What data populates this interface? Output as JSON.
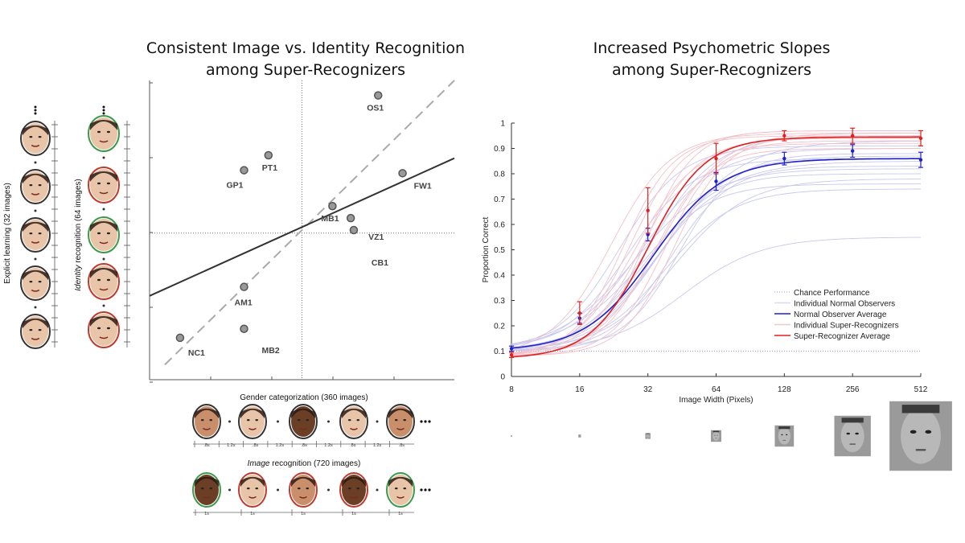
{
  "titles": {
    "left_line1": "Consistent Image vs. Identity Recognition",
    "left_line2": "among Super-Recognizers",
    "right_line1": "Increased Psychometric Slopes",
    "right_line2": "among Super-Recognizers"
  },
  "left_panel": {
    "explicit_label": "Explicit learning (32 images)",
    "identity_label_italic": "Identity",
    "identity_label_rest": " recognition (64 images)",
    "gender_label": "Gender categorization (360 images)",
    "image_label_italic": "Image",
    "image_label_rest": " recognition (720 images)",
    "ellipsis": "...",
    "timing_gender": [
      ".8s",
      "1.2s",
      ".8s",
      "1.2s",
      ".8s",
      "1.2s",
      ".8s",
      "1.2s",
      ".8s"
    ],
    "timing_image": [
      "1s",
      "1s",
      "1s",
      "1s",
      "1s"
    ],
    "face_colors": {
      "skin_light": "#e8c4a8",
      "skin_mid": "#c98e6a",
      "skin_dark": "#6b3e26",
      "border_green": "#3a9a4a",
      "border_red": "#c0392b",
      "border_dark": "#333333"
    }
  },
  "chart_data": [
    {
      "type": "scatter",
      "title": "Consistent Image vs. Identity Recognition among Super-Recognizers",
      "xlabel": "",
      "ylabel": "",
      "xlim": [
        0,
        10
      ],
      "ylim": [
        0,
        10
      ],
      "points": [
        {
          "label": "OS1",
          "x": 7.5,
          "y": 9.5
        },
        {
          "label": "PT1",
          "x": 3.9,
          "y": 7.5
        },
        {
          "label": "GP1",
          "x": 3.1,
          "y": 7.0
        },
        {
          "label": "FW1",
          "x": 8.3,
          "y": 6.9
        },
        {
          "label": "MB1",
          "x": 6.0,
          "y": 5.8
        },
        {
          "label": "VZ1",
          "x": 6.6,
          "y": 5.4
        },
        {
          "label": "CB1",
          "x": 6.7,
          "y": 5.0
        },
        {
          "label": "AM1",
          "x": 3.1,
          "y": 3.1
        },
        {
          "label": "MB2",
          "x": 3.1,
          "y": 1.7
        },
        {
          "label": "NC1",
          "x": 1.0,
          "y": 1.4
        }
      ],
      "regression_line": {
        "x": [
          0,
          10
        ],
        "y": [
          2.8,
          7.4
        ]
      },
      "identity_line": {
        "x": [
          0.5,
          10
        ],
        "y": [
          0.5,
          10
        ]
      },
      "mean_lines": {
        "x": 5.0,
        "y": 4.9
      }
    },
    {
      "type": "line",
      "title": "Increased Psychometric Slopes among Super-Recognizers",
      "xlabel": "Image Width (Pixels)",
      "ylabel": "Proportion Correct",
      "x_scale": "log2",
      "x_ticks": [
        8,
        16,
        32,
        64,
        128,
        256,
        512
      ],
      "y_ticks": [
        0,
        0.1,
        0.2,
        0.3,
        0.4,
        0.5,
        0.6,
        0.7,
        0.8,
        0.9,
        1
      ],
      "xlim": [
        8,
        512
      ],
      "ylim": [
        0,
        1
      ],
      "chance_level": 0.1,
      "series": [
        {
          "name": "Normal Observer Average",
          "color": "#1f1fcc",
          "x": [
            8,
            16,
            32,
            64,
            128,
            256,
            512
          ],
          "y": [
            0.11,
            0.23,
            0.56,
            0.77,
            0.86,
            0.89,
            0.855
          ],
          "err": [
            0.01,
            0.02,
            0.025,
            0.035,
            0.025,
            0.025,
            0.03
          ],
          "fit": {
            "lo": 0.1,
            "hi": 0.86,
            "mid": 34,
            "slope": 1.9
          }
        },
        {
          "name": "Super-Recognizer Average",
          "color": "#e02020",
          "x": [
            8,
            16,
            32,
            64,
            128,
            256,
            512
          ],
          "y": [
            0.085,
            0.25,
            0.655,
            0.86,
            0.95,
            0.95,
            0.94
          ],
          "err": [
            0.01,
            0.045,
            0.09,
            0.06,
            0.02,
            0.03,
            0.03
          ],
          "fit": {
            "lo": 0.07,
            "hi": 0.945,
            "mid": 32,
            "slope": 2.3
          }
        }
      ],
      "individual_normal": [
        {
          "lo": 0.1,
          "hi": 0.55,
          "mid": 46,
          "slope": 1.7
        },
        {
          "lo": 0.1,
          "hi": 0.74,
          "mid": 38,
          "slope": 1.9
        },
        {
          "lo": 0.1,
          "hi": 0.76,
          "mid": 30,
          "slope": 2.0
        },
        {
          "lo": 0.1,
          "hi": 0.78,
          "mid": 42,
          "slope": 1.8
        },
        {
          "lo": 0.1,
          "hi": 0.8,
          "mid": 34,
          "slope": 2.1
        },
        {
          "lo": 0.1,
          "hi": 0.82,
          "mid": 28,
          "slope": 1.7
        },
        {
          "lo": 0.1,
          "hi": 0.83,
          "mid": 40,
          "slope": 2.2
        },
        {
          "lo": 0.1,
          "hi": 0.85,
          "mid": 32,
          "slope": 1.6
        },
        {
          "lo": 0.1,
          "hi": 0.86,
          "mid": 26,
          "slope": 2.0
        },
        {
          "lo": 0.1,
          "hi": 0.87,
          "mid": 36,
          "slope": 1.9
        },
        {
          "lo": 0.1,
          "hi": 0.88,
          "mid": 44,
          "slope": 2.3
        },
        {
          "lo": 0.1,
          "hi": 0.9,
          "mid": 30,
          "slope": 1.8
        },
        {
          "lo": 0.1,
          "hi": 0.91,
          "mid": 24,
          "slope": 2.1
        },
        {
          "lo": 0.1,
          "hi": 0.93,
          "mid": 38,
          "slope": 1.7
        },
        {
          "lo": 0.1,
          "hi": 0.95,
          "mid": 33,
          "slope": 2.0
        }
      ],
      "individual_super": [
        {
          "lo": 0.08,
          "hi": 0.9,
          "mid": 34,
          "slope": 2.4
        },
        {
          "lo": 0.08,
          "hi": 0.92,
          "mid": 28,
          "slope": 2.2
        },
        {
          "lo": 0.08,
          "hi": 0.93,
          "mid": 38,
          "slope": 2.5
        },
        {
          "lo": 0.08,
          "hi": 0.94,
          "mid": 30,
          "slope": 2.3
        },
        {
          "lo": 0.08,
          "hi": 0.95,
          "mid": 25,
          "slope": 2.6
        },
        {
          "lo": 0.08,
          "hi": 0.96,
          "mid": 36,
          "slope": 2.1
        },
        {
          "lo": 0.08,
          "hi": 0.97,
          "mid": 27,
          "slope": 2.4
        },
        {
          "lo": 0.08,
          "hi": 0.96,
          "mid": 22,
          "slope": 2.2
        },
        {
          "lo": 0.08,
          "hi": 0.95,
          "mid": 42,
          "slope": 2.5
        },
        {
          "lo": 0.08,
          "hi": 0.97,
          "mid": 31,
          "slope": 2.7
        }
      ],
      "legend": [
        {
          "label": "Chance Performance",
          "color": "#9999cc",
          "style": "dotted"
        },
        {
          "label": "Individual  Normal  Observers",
          "color": "#d8d8f0",
          "style": "solid"
        },
        {
          "label": "Normal Observer Average",
          "color": "#1f1fcc",
          "style": "solid"
        },
        {
          "label": "Individual Super-Recognizers",
          "color": "#f0c8c8",
          "style": "solid"
        },
        {
          "label": "Super-Recognizer Average",
          "color": "#e02020",
          "style": "solid"
        }
      ],
      "legend_position": "bottom-right"
    }
  ]
}
